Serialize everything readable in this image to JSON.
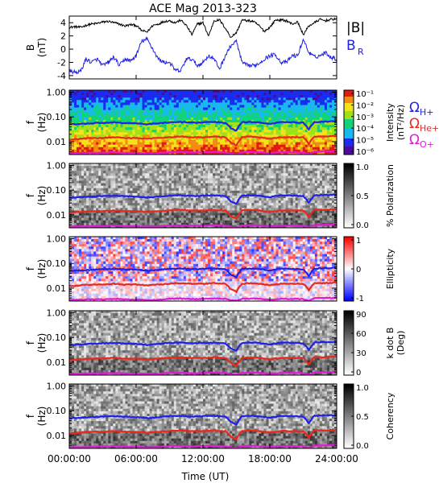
{
  "chart_data": {
    "type": "line",
    "title": "ACE Mag 2013-323",
    "xlabel": "Time (UT)",
    "x_ticks": [
      "00:00:00",
      "06:00:00",
      "12:00:00",
      "18:00:00",
      "24:00:00"
    ],
    "x_range_hours": [
      0,
      24
    ],
    "panels": [
      {
        "kind": "timeseries",
        "ylabel": "B",
        "ylabel_unit": "(nT)",
        "ylim": [
          -4.5,
          5
        ],
        "yticks": [
          "4",
          "2",
          "0",
          "-2",
          "-4"
        ],
        "series": [
          {
            "name": "|B|",
            "color": "#000000",
            "t": [
              0,
              0.5,
              1,
              1.5,
              2,
              2.5,
              3,
              3.5,
              4,
              4.5,
              5,
              5.5,
              6,
              6.5,
              7,
              7.5,
              8,
              8.5,
              9,
              9.5,
              10,
              10.5,
              11,
              11.5,
              12,
              12.5,
              13,
              13.5,
              14,
              14.5,
              15,
              15.5,
              16,
              16.5,
              17,
              17.5,
              18,
              18.5,
              19,
              19.5,
              20,
              20.5,
              21,
              21.5,
              22,
              22.5,
              23,
              23.5,
              24
            ],
            "values": [
              3.3,
              3.4,
              3.3,
              3.6,
              3.8,
              3.9,
              4.1,
              4.2,
              4.0,
              3.8,
              3.5,
              3.7,
              3.6,
              2.8,
              2.6,
              3.6,
              3.8,
              4.2,
              4.3,
              4.0,
              4.4,
              3.6,
              2.2,
              3.8,
              4.0,
              2.0,
              4.3,
              4.4,
              3.2,
              1.8,
              2.5,
              4.4,
              4.3,
              4.2,
              3.6,
              2.7,
              3.3,
              4.4,
              4.4,
              4.3,
              3.8,
              4.1,
              2.2,
              3.5,
              4.0,
              4.5,
              4.3,
              4.5,
              4.6
            ]
          },
          {
            "name": "B",
            "subscript": "R",
            "color": "#1f22e6",
            "t": [
              0,
              0.5,
              1,
              1.5,
              2,
              2.5,
              3,
              3.5,
              4,
              4.5,
              5,
              5.5,
              6,
              6.5,
              7,
              7.5,
              8,
              8.5,
              9,
              9.5,
              10,
              10.5,
              11,
              11.5,
              12,
              12.5,
              13,
              13.5,
              14,
              14.5,
              15,
              15.5,
              16,
              16.5,
              17,
              17.5,
              18,
              18.5,
              19,
              19.5,
              20,
              20.5,
              21,
              21.5,
              22,
              22.5,
              23,
              23.5,
              24
            ],
            "values": [
              -3.3,
              -3.5,
              -3.4,
              -1.5,
              -2.0,
              -1.5,
              -2.5,
              -2.0,
              -1.2,
              -2.5,
              -1.5,
              -1.8,
              -1.0,
              1.2,
              1.5,
              0.0,
              -1.5,
              -2.0,
              -2.0,
              -3.2,
              -3.3,
              -1.5,
              -1.5,
              -2.5,
              -2.0,
              -1.0,
              -1.5,
              -3.0,
              -1.0,
              0.5,
              1.2,
              -2.0,
              -2.5,
              -2.5,
              -2.2,
              -1.5,
              -1.0,
              -0.8,
              -2.0,
              -2.0,
              -1.0,
              -1.0,
              1.5,
              -0.5,
              -1.2,
              -1.0,
              -0.5,
              -1.2,
              -1.5
            ]
          }
        ]
      },
      {
        "kind": "spectrogram",
        "ylabel": "f",
        "ylabel_unit": "(Hz)",
        "yaxis": "log",
        "ylim": [
          0.003,
          1.2
        ],
        "yticks": [
          "1.00",
          "0.10",
          "0.01"
        ],
        "palette": "rainbow",
        "colorbar": {
          "ticks": [
            "10⁻¹",
            "10⁻²",
            "10⁻³",
            "10⁻⁴",
            "10⁻⁵",
            "10⁻⁶"
          ],
          "label": "Intensity",
          "unit": "(nT²/Hz)"
        },
        "legend": [
          {
            "symbol": "Ω",
            "subscript": "H+",
            "color": "#1f22e6"
          },
          {
            "symbol": "Ω",
            "subscript": "He+",
            "color": "#e62a1f"
          },
          {
            "symbol": "Ω",
            "subscript": "O+",
            "color": "#e11ad6"
          }
        ]
      },
      {
        "kind": "spectrogram",
        "ylabel": "f",
        "ylabel_unit": "(Hz)",
        "yaxis": "log",
        "ylim": [
          0.003,
          1.2
        ],
        "yticks": [
          "1.00",
          "0.10",
          "0.01"
        ],
        "palette": "gray",
        "colorbar": {
          "ticks": [
            "1.0",
            "0.5",
            "0.0"
          ],
          "label": "% Polarization",
          "unit": ""
        }
      },
      {
        "kind": "spectrogram",
        "ylabel": "f",
        "ylabel_unit": "(Hz)",
        "yaxis": "log",
        "ylim": [
          0.003,
          1.2
        ],
        "yticks": [
          "1.00",
          "0.10",
          "0.01"
        ],
        "palette": "bwr",
        "colorbar": {
          "ticks": [
            "1",
            "0",
            "-1"
          ],
          "label": "Ellipticity",
          "unit": ""
        }
      },
      {
        "kind": "spectrogram",
        "ylabel": "f",
        "ylabel_unit": "(Hz)",
        "yaxis": "log",
        "ylim": [
          0.003,
          1.2
        ],
        "yticks": [
          "1.00",
          "0.10",
          "0.01"
        ],
        "palette": "gray",
        "colorbar": {
          "ticks": [
            "90",
            "60",
            "30",
            "0"
          ],
          "label": "k dot B",
          "unit": "(Deg)"
        }
      },
      {
        "kind": "spectrogram",
        "ylabel": "f",
        "ylabel_unit": "(Hz)",
        "yaxis": "log",
        "ylim": [
          0.003,
          1.2
        ],
        "yticks": [
          "1.00",
          "0.10",
          "0.01"
        ],
        "palette": "gray",
        "colorbar": {
          "ticks": [
            "1.0",
            "0.5",
            "0.0"
          ],
          "label": "Coherency",
          "unit": ""
        }
      }
    ],
    "gyrofrequency_lines": [
      {
        "color": "#1f22e6",
        "t": [
          0,
          1,
          2,
          3,
          4,
          5,
          6,
          7,
          8,
          9,
          10,
          11,
          12,
          13,
          14,
          14.5,
          15,
          15.5,
          16,
          17,
          18,
          19,
          20,
          21,
          21.5,
          22,
          23,
          24
        ],
        "values": [
          0.05,
          0.052,
          0.055,
          0.058,
          0.06,
          0.057,
          0.055,
          0.05,
          0.055,
          0.06,
          0.062,
          0.058,
          0.06,
          0.062,
          0.058,
          0.035,
          0.028,
          0.06,
          0.062,
          0.06,
          0.052,
          0.062,
          0.06,
          0.058,
          0.03,
          0.062,
          0.064,
          0.066
        ]
      },
      {
        "color": "#e62a1f",
        "t": [
          0,
          1,
          2,
          3,
          4,
          5,
          6,
          7,
          8,
          9,
          10,
          11,
          12,
          13,
          14,
          14.5,
          15,
          15.5,
          16,
          17,
          18,
          19,
          20,
          21,
          21.5,
          22,
          23,
          24
        ],
        "values": [
          0.012,
          0.013,
          0.014,
          0.014,
          0.015,
          0.014,
          0.014,
          0.013,
          0.014,
          0.015,
          0.016,
          0.015,
          0.015,
          0.016,
          0.015,
          0.009,
          0.007,
          0.015,
          0.016,
          0.015,
          0.013,
          0.015,
          0.015,
          0.015,
          0.008,
          0.016,
          0.016,
          0.017
        ]
      },
      {
        "color": "#e11ad6",
        "t": [
          0,
          1,
          2,
          3,
          4,
          5,
          6,
          7,
          8,
          9,
          10,
          11,
          12,
          13,
          14,
          14.5,
          15,
          15.5,
          16,
          17,
          18,
          19,
          20,
          21,
          21.5,
          22,
          23,
          24
        ],
        "values": [
          0.0033,
          0.0034,
          0.0035,
          0.0035,
          0.0037,
          0.0035,
          0.0034,
          0.0033,
          0.0034,
          0.0037,
          0.0038,
          0.0036,
          0.0037,
          0.0038,
          0.0037,
          0.0032,
          0.0031,
          0.0037,
          0.0038,
          0.0037,
          0.0034,
          0.0037,
          0.0037,
          0.0036,
          0.0031,
          0.0039,
          0.004,
          0.0041
        ]
      }
    ]
  }
}
